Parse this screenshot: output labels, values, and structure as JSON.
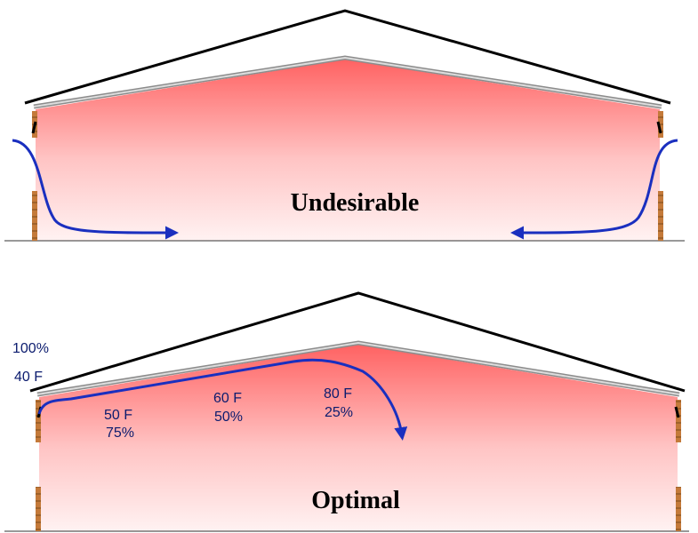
{
  "top_panel": {
    "label": "Undesirable"
  },
  "bottom_panel": {
    "label": "Optimal",
    "outside_humidity": "100%",
    "outside_temp": "40 F",
    "point1_temp": "50 F",
    "point1_humidity": "75%",
    "point2_temp": "60 F",
    "point2_humidity": "50%",
    "point3_temp": "80 F",
    "point3_humidity": "25%"
  },
  "colors": {
    "warm_air": "#ff6a6a",
    "airflow_arrow": "#1a2fbf",
    "roof_line": "#000000",
    "wall_brick": "#b5651d"
  }
}
